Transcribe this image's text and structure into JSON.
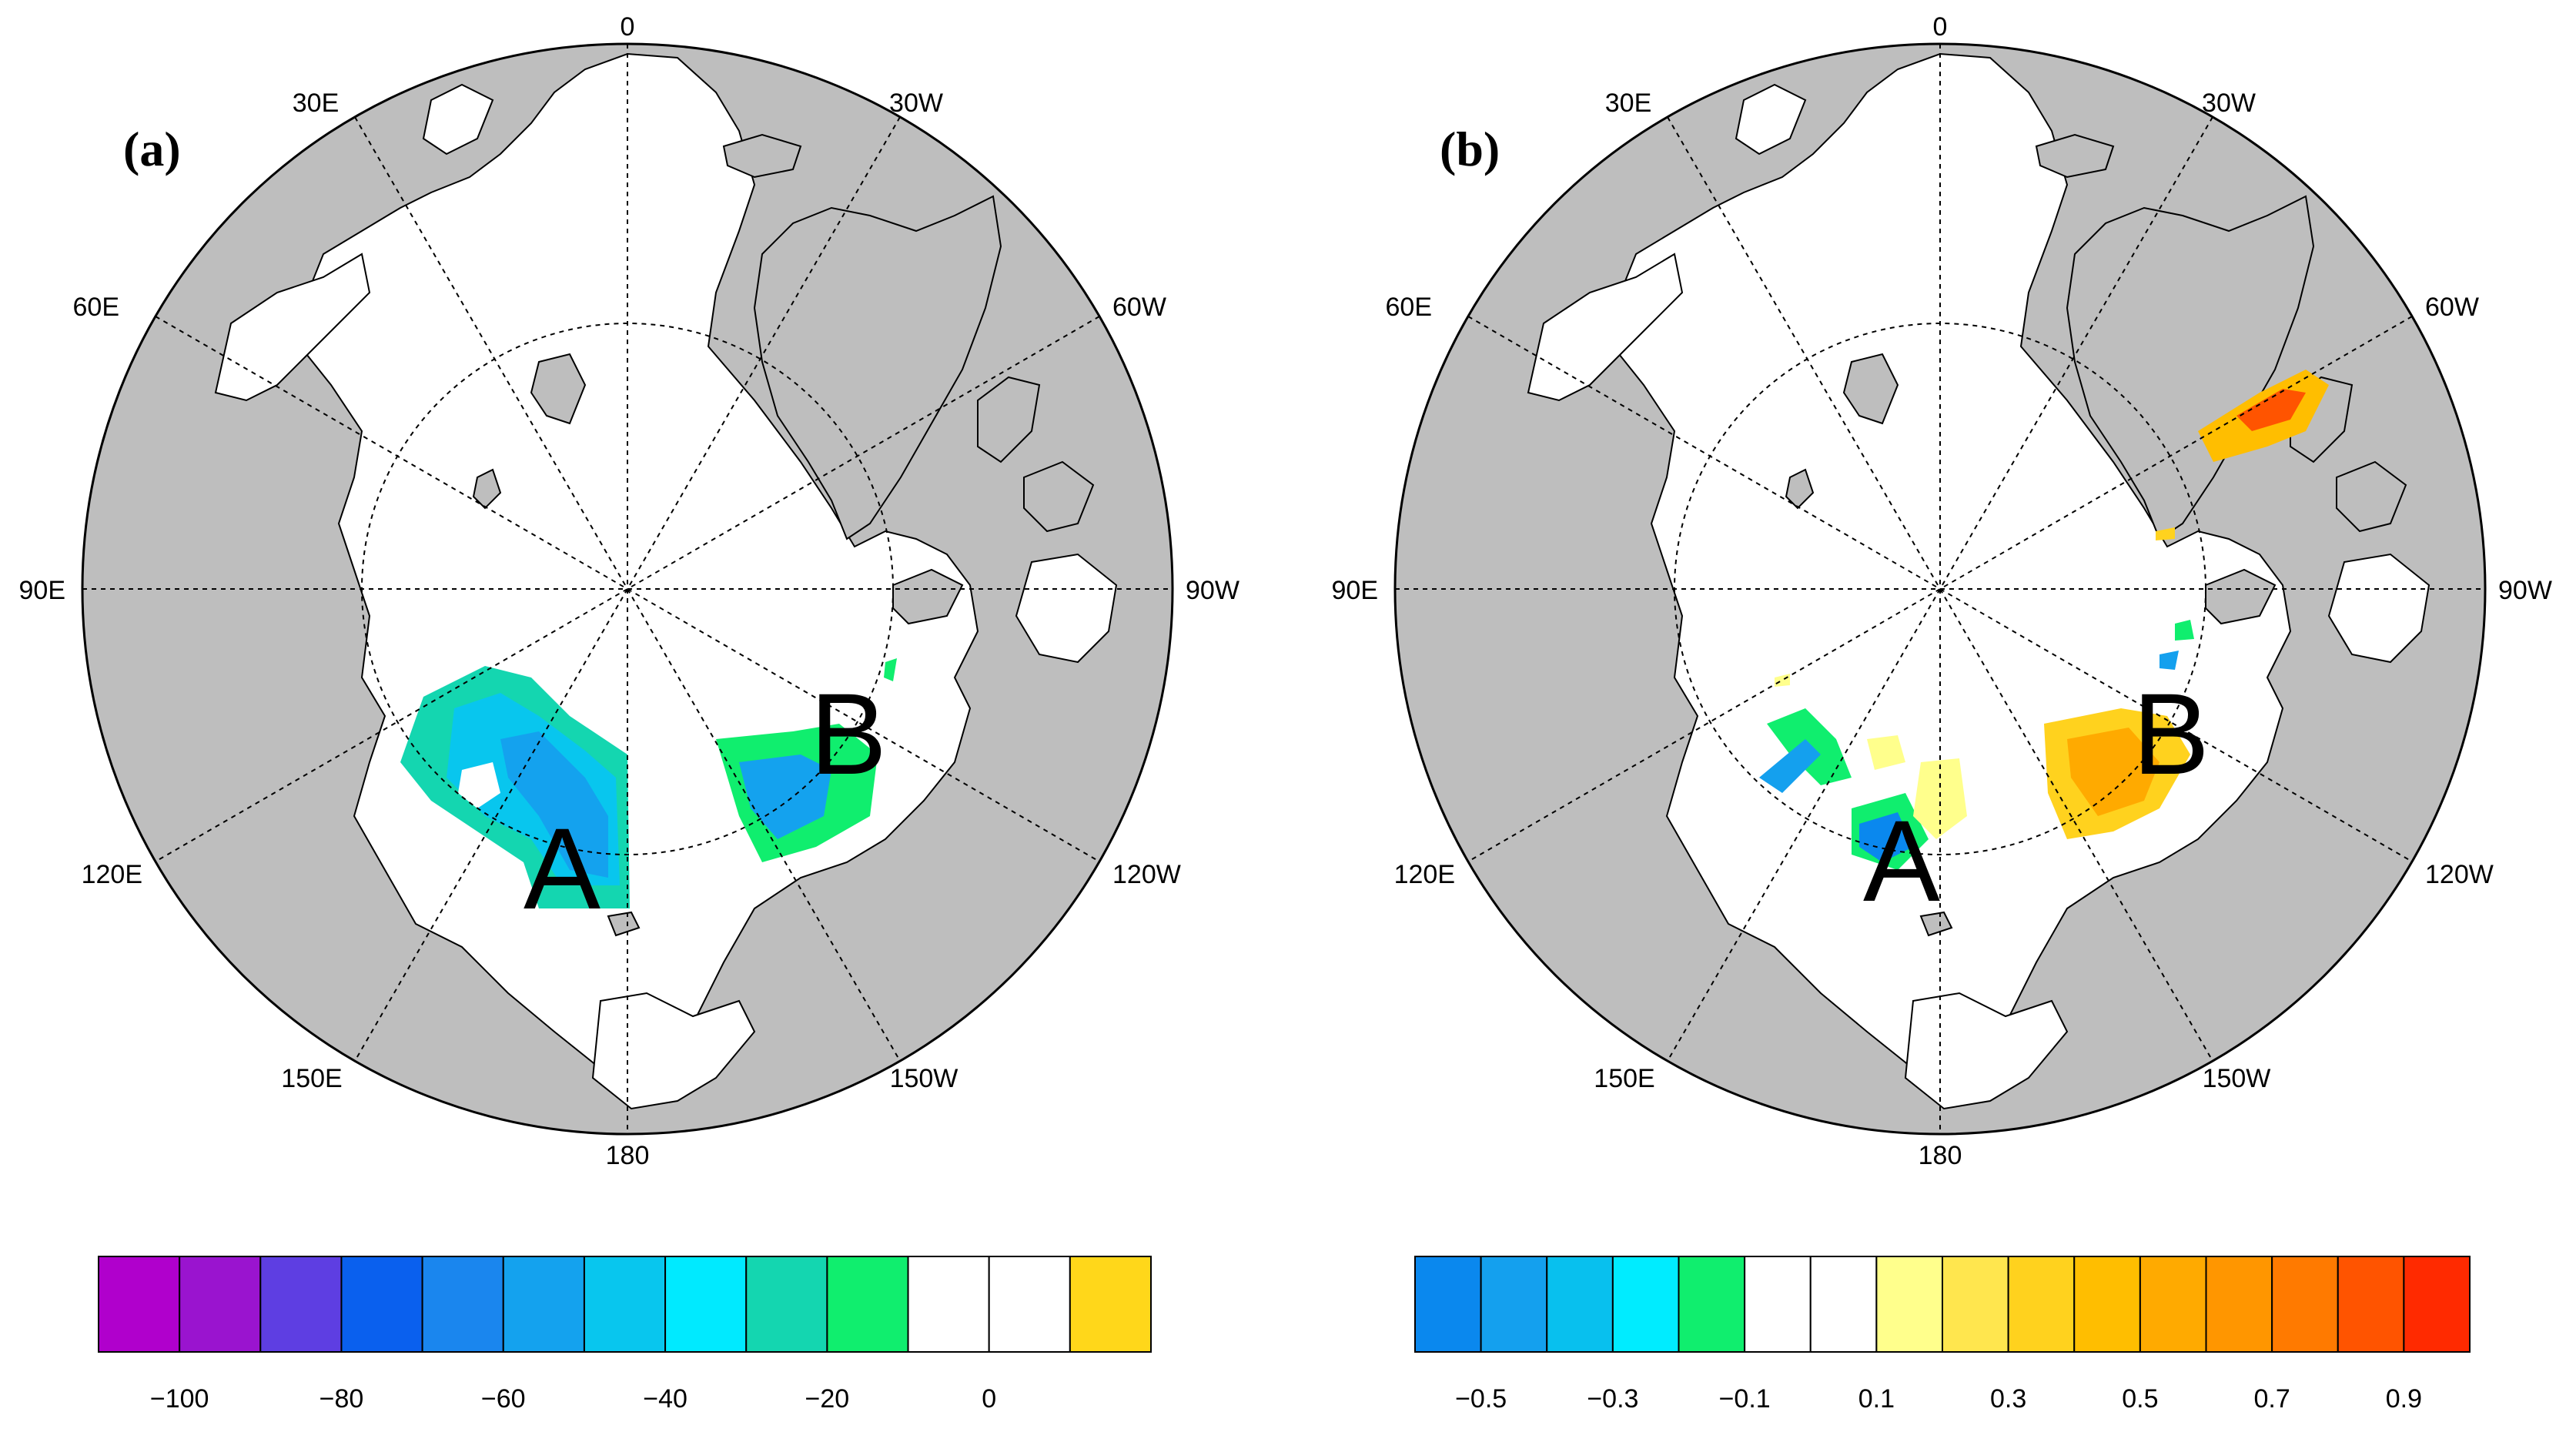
{
  "panels": [
    {
      "tag": "(a)",
      "lon_labels": {
        "top": "0",
        "top_right": "30W",
        "right_upper": "60W",
        "right": "90W",
        "right_lower": "120W",
        "bottom_right": "150W",
        "bottom": "180",
        "bottom_left": "150E",
        "left_lower": "120E",
        "left": "90E",
        "left_upper": "60E",
        "top_left": "30E"
      },
      "region_labels": [
        "A",
        "B"
      ],
      "colorbar": {
        "colors": [
          "#b000cc",
          "#9a14cf",
          "#5e3ee2",
          "#0a60ee",
          "#1a86ee",
          "#14a2ee",
          "#08c6ee",
          "#00eaff",
          "#14d6b0",
          "#10ee6e",
          "#ffffff",
          "#ffffff",
          "#ffd71a"
        ],
        "labels": [
          "−100",
          "−80",
          "−60",
          "−40",
          "−20",
          "0"
        ]
      }
    },
    {
      "tag": "(b)",
      "lon_labels": {
        "top": "0",
        "top_right": "30W",
        "right_upper": "60W",
        "right": "90W",
        "right_lower": "120W",
        "bottom_right": "150W",
        "bottom": "180",
        "bottom_left": "150E",
        "left_lower": "120E",
        "left": "90E",
        "left_upper": "60E",
        "top_left": "30E"
      },
      "region_labels": [
        "A",
        "B"
      ],
      "colorbar": {
        "colors": [
          "#0a88ee",
          "#14a0ee",
          "#08c0ee",
          "#00ecff",
          "#10ee6e",
          "#ffffff",
          "#ffffff",
          "#ffff8c",
          "#ffe64e",
          "#ffd21e",
          "#ffbe00",
          "#ffaa00",
          "#ff9600",
          "#ff7a00",
          "#ff5400",
          "#ff2a00"
        ],
        "labels": [
          "−0.5",
          "−0.3",
          "−0.1",
          "0.1",
          "0.3",
          "0.5",
          "0.7",
          "0.9"
        ]
      }
    }
  ],
  "colors": {
    "land": "#bebebe",
    "ocean": "#ffffff",
    "outline": "#000000"
  }
}
